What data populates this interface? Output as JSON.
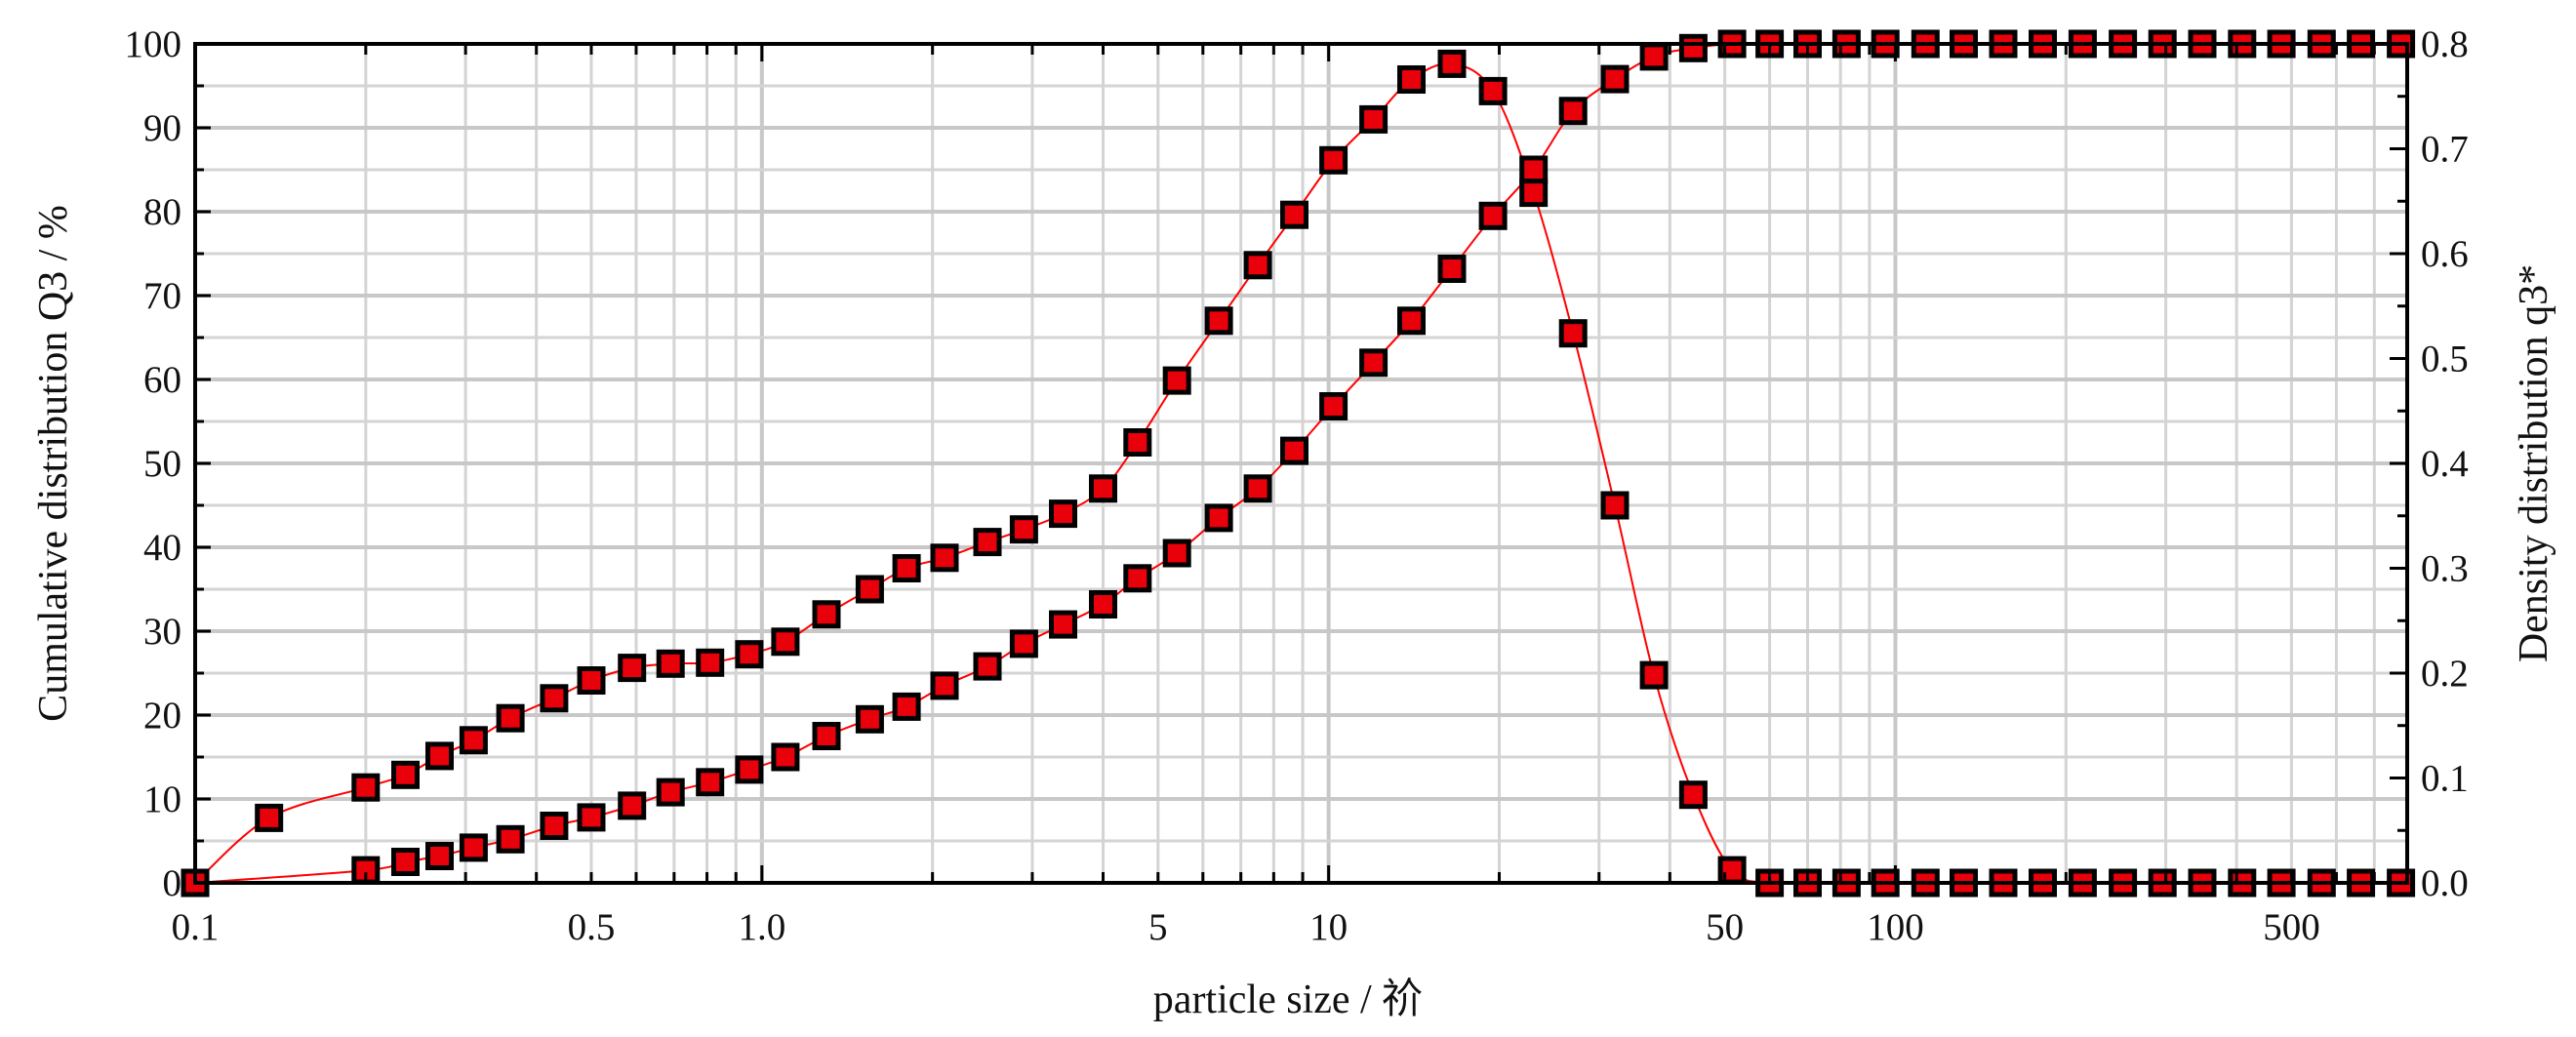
{
  "chart_data": {
    "type": "scatter",
    "title": "",
    "xlabel": "particle size / 祄",
    "ylabel_left": "Cumulative distribution Q3 / %",
    "ylabel_right": "Density distribution q3*",
    "x_scale": "log",
    "xlim": [
      0.1,
      800
    ],
    "ylim_left": [
      0,
      100
    ],
    "ylim_right": [
      0,
      0.8
    ],
    "grid": true,
    "x_tick_labels": [
      "0.1",
      "0.5",
      "1.0",
      "5",
      "10",
      "50",
      "100",
      "500"
    ],
    "y_left_tick_labels": [
      "0",
      "10",
      "20",
      "30",
      "40",
      "50",
      "60",
      "70",
      "80",
      "90",
      "100"
    ],
    "y_right_tick_labels": [
      "0.0",
      "0.1",
      "0.2",
      "0.3",
      "0.4",
      "0.5",
      "0.6",
      "0.7",
      "0.8"
    ],
    "marker_fill": "#e8000b",
    "line_color": "#ff0000",
    "series": [
      {
        "axis": "left",
        "x": [
          0.1,
          0.2,
          0.235,
          0.27,
          0.31,
          0.36,
          0.43,
          0.5,
          0.59,
          0.69,
          0.81,
          0.95,
          1.1,
          1.3,
          1.55,
          1.8,
          2.1,
          2.5,
          2.9,
          3.4,
          4.0,
          4.6,
          5.4,
          6.4,
          7.5,
          8.7,
          10.2,
          12,
          14,
          16.5,
          19.5,
          23,
          27,
          32,
          37.5,
          44,
          51.5,
          60,
          70,
          82,
          96,
          113,
          132,
          155,
          182,
          214,
          252,
          296,
          348,
          409,
          480,
          565,
          663,
          780
        ],
        "y": [
          0,
          1.5,
          2.5,
          3.2,
          4.2,
          5.2,
          6.8,
          7.8,
          9.2,
          10.8,
          12,
          13.5,
          15,
          17.5,
          19.5,
          21,
          23.5,
          25.8,
          28.5,
          30.8,
          33.2,
          36.3,
          39.3,
          43.5,
          47,
          51.5,
          56.8,
          62,
          67,
          73.2,
          79.5,
          85,
          92,
          95.8,
          98.5,
          99.5,
          100,
          100,
          100,
          100,
          100,
          100,
          100,
          100,
          100,
          100,
          100,
          100,
          100,
          100,
          100,
          100,
          100,
          100
        ]
      },
      {
        "axis": "right",
        "x": [
          0.1,
          0.135,
          0.2,
          0.235,
          0.27,
          0.31,
          0.36,
          0.43,
          0.5,
          0.59,
          0.69,
          0.81,
          0.95,
          1.1,
          1.3,
          1.55,
          1.8,
          2.1,
          2.5,
          2.9,
          3.4,
          4.0,
          4.6,
          5.4,
          6.4,
          7.5,
          8.7,
          10.2,
          12,
          14,
          16.5,
          19.5,
          23,
          27,
          32,
          37.5,
          44,
          51.5,
          60,
          70,
          82,
          96,
          113,
          132,
          155,
          182,
          214,
          252,
          296,
          348,
          409,
          480,
          565,
          663,
          780
        ],
        "y": [
          0,
          0.062,
          0.091,
          0.103,
          0.121,
          0.136,
          0.157,
          0.176,
          0.193,
          0.205,
          0.209,
          0.21,
          0.218,
          0.23,
          0.256,
          0.28,
          0.3,
          0.31,
          0.325,
          0.337,
          0.352,
          0.376,
          0.42,
          0.479,
          0.536,
          0.589,
          0.637,
          0.689,
          0.728,
          0.766,
          0.781,
          0.755,
          0.658,
          0.524,
          0.36,
          0.198,
          0.084,
          0.012,
          0,
          0,
          0,
          0,
          0,
          0,
          0,
          0,
          0,
          0,
          0,
          0,
          0,
          0,
          0,
          0,
          0
        ]
      }
    ]
  }
}
